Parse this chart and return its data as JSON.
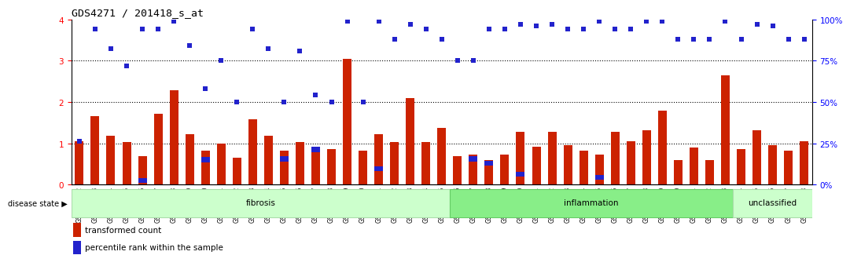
{
  "title": "GDS4271 / 201418_s_at",
  "samples": [
    "GSM380382",
    "GSM380383",
    "GSM380384",
    "GSM380385",
    "GSM380386",
    "GSM380387",
    "GSM380388",
    "GSM380389",
    "GSM380390",
    "GSM380391",
    "GSM380392",
    "GSM380393",
    "GSM380394",
    "GSM380395",
    "GSM380396",
    "GSM380397",
    "GSM380398",
    "GSM380399",
    "GSM380400",
    "GSM380401",
    "GSM380402",
    "GSM380403",
    "GSM380404",
    "GSM380405",
    "GSM380406",
    "GSM380407",
    "GSM380408",
    "GSM380409",
    "GSM380410",
    "GSM380411",
    "GSM380412",
    "GSM380413",
    "GSM380414",
    "GSM380415",
    "GSM380416",
    "GSM380417",
    "GSM380418",
    "GSM380419",
    "GSM380420",
    "GSM380421",
    "GSM380422",
    "GSM380423",
    "GSM380424",
    "GSM380425",
    "GSM380426",
    "GSM380427",
    "GSM380428"
  ],
  "bar_values": [
    1.05,
    1.65,
    1.18,
    1.02,
    0.68,
    1.72,
    2.28,
    1.22,
    0.82,
    1.0,
    0.65,
    1.58,
    1.18,
    0.82,
    1.03,
    0.9,
    0.85,
    3.05,
    0.82,
    1.22,
    1.03,
    2.1,
    1.02,
    1.38,
    0.68,
    0.72,
    0.6,
    0.72,
    1.28,
    0.92,
    1.28,
    0.95,
    0.82,
    0.72,
    1.28,
    1.05,
    1.32,
    1.78,
    0.6,
    0.9,
    0.6,
    2.65,
    0.85,
    1.32,
    0.95,
    0.82,
    1.05
  ],
  "blue_in_bar": [
    -1,
    -1,
    -1,
    -1,
    0.1,
    -1,
    -1,
    -1,
    0.6,
    -1,
    -1,
    -1,
    -1,
    0.62,
    -1,
    0.85,
    -1,
    -1,
    -1,
    0.38,
    -1,
    -1,
    -1,
    -1,
    -1,
    0.62,
    0.52,
    -1,
    0.25,
    -1,
    -1,
    -1,
    -1,
    0.18,
    -1,
    -1,
    -1,
    -1,
    -1,
    -1,
    -1,
    -1,
    -1,
    -1,
    -1,
    -1,
    -1
  ],
  "dot_values_pct": [
    26,
    94,
    82,
    72,
    94,
    94,
    99,
    84,
    58,
    75,
    50,
    94,
    82,
    50,
    81,
    54,
    50,
    99,
    50,
    99,
    88,
    97,
    94,
    88,
    75,
    75,
    94,
    94,
    97,
    96,
    97,
    94,
    94,
    99,
    94,
    94,
    99,
    99,
    88,
    88,
    88,
    99,
    88,
    97,
    96,
    88,
    88
  ],
  "groups": [
    {
      "label": "fibrosis",
      "start": 0,
      "end": 24,
      "color": "#ccffcc",
      "edge": "#aaddaa"
    },
    {
      "label": "inflammation",
      "start": 24,
      "end": 42,
      "color": "#88ee88",
      "edge": "#66cc66"
    },
    {
      "label": "unclassified",
      "start": 42,
      "end": 47,
      "color": "#ccffcc",
      "edge": "#aaddaa"
    }
  ],
  "ylim_left": [
    0,
    4
  ],
  "ylim_right": [
    0,
    100
  ],
  "yticks_left": [
    0,
    1,
    2,
    3,
    4
  ],
  "yticks_right": [
    0,
    25,
    50,
    75,
    100
  ],
  "dotted_lines": [
    1,
    2,
    3
  ],
  "bar_color": "#cc2200",
  "blue_color": "#2222cc",
  "dot_color": "#2222cc",
  "disease_state_label": "disease state",
  "legend_bar": "transformed count",
  "legend_dot": "percentile rank within the sample"
}
